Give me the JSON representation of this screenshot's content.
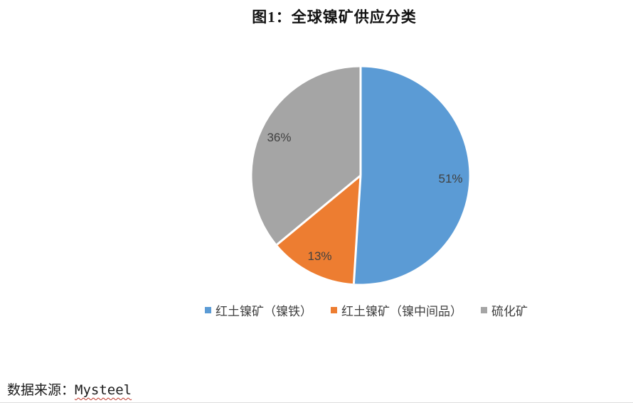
{
  "chart_data": {
    "type": "pie",
    "title": "图1：全球镍矿供应分类",
    "slices": [
      {
        "label": "红土镍矿（镍铁）",
        "value": 51,
        "data_label": "51%",
        "color": "#5B9BD5"
      },
      {
        "label": "红土镍矿（镍中间品）",
        "value": 13,
        "data_label": "13%",
        "color": "#ED7D31"
      },
      {
        "label": "硫化矿",
        "value": 36,
        "data_label": "36%",
        "color": "#A5A5A5"
      }
    ],
    "unit": "percent",
    "start_angle_deg": 0,
    "direction": "clockwise",
    "legend_position": "bottom",
    "slice_border_color": "#FFFFFF",
    "data_label_color": "#404040"
  },
  "footer": {
    "source_prefix": "数据来源：",
    "source_name": "Mysteel",
    "squiggle_color": "#C0392B"
  }
}
